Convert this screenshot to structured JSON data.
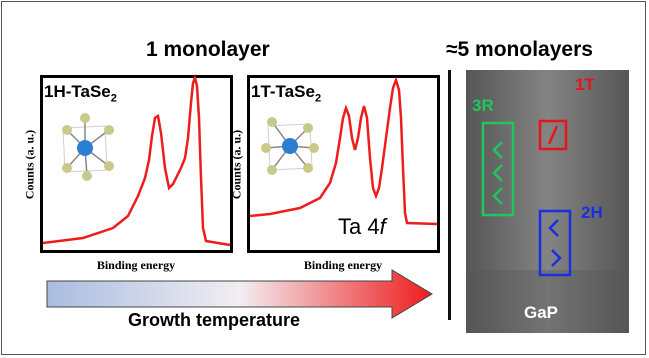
{
  "headings": {
    "left": "1 monolayer",
    "right": "≈5 monolayers"
  },
  "panels": [
    {
      "title_main": "1H-TaSe",
      "title_sub": "2",
      "y_label": "Counts (a. u.)",
      "x_label": "Binding energy"
    },
    {
      "title_main": "1T-TaSe",
      "title_sub": "2",
      "y_label": "Counts (a. u.)",
      "x_label": "Binding energy",
      "annotation_main": "Ta 4",
      "annotation_italic": "f"
    }
  ],
  "arrow": {
    "label": "Growth temperature",
    "color_start": "#a9bde0",
    "color_end": "#ee1c1c"
  },
  "stem": {
    "labels": {
      "t1": "1T",
      "r3": "3R",
      "h2": "2H",
      "substrate": "GaP"
    },
    "colors": {
      "t1": "#e8141c",
      "r3": "#22c55e",
      "h2": "#1a2fe0"
    }
  },
  "colors": {
    "spectrum": "#ee1c1c",
    "panel_border": "#000000",
    "atom_ta": "#2a7fd0",
    "atom_se": "#c9c98a"
  }
}
